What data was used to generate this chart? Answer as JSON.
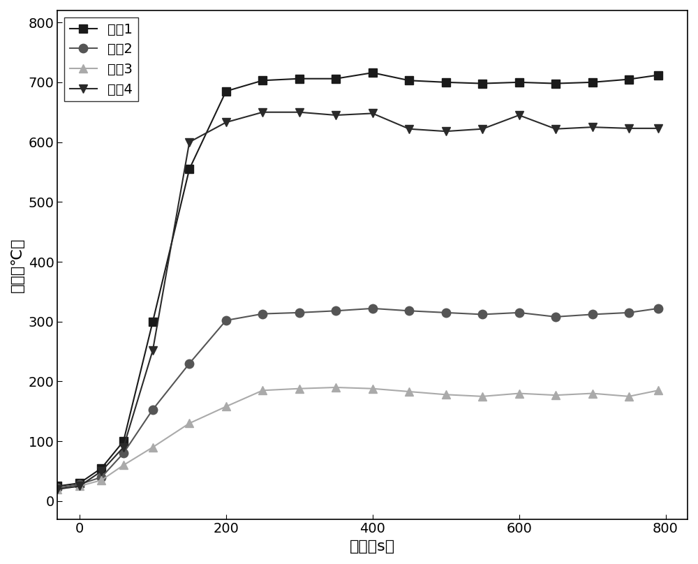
{
  "title": "",
  "xlabel": "时间（s）",
  "ylabel": "温度（℃）",
  "xlim": [
    -30,
    830
  ],
  "ylim": [
    -30,
    820
  ],
  "xticks": [
    0,
    200,
    400,
    600,
    800
  ],
  "yticks": [
    0,
    100,
    200,
    300,
    400,
    500,
    600,
    700,
    800
  ],
  "series": [
    {
      "label": "部位1",
      "color": "#1a1a1a",
      "marker": "s",
      "markersize": 9,
      "x": [
        -30,
        0,
        30,
        60,
        100,
        150,
        200,
        250,
        300,
        350,
        400,
        450,
        500,
        550,
        600,
        650,
        700,
        750,
        790
      ],
      "y": [
        25,
        30,
        55,
        100,
        300,
        555,
        685,
        703,
        706,
        706,
        716,
        703,
        700,
        698,
        700,
        698,
        700,
        705,
        712
      ]
    },
    {
      "label": "部位2",
      "color": "#555555",
      "marker": "o",
      "markersize": 9,
      "x": [
        -30,
        0,
        30,
        60,
        100,
        150,
        200,
        250,
        300,
        350,
        400,
        450,
        500,
        550,
        600,
        650,
        700,
        750,
        790
      ],
      "y": [
        22,
        28,
        40,
        80,
        153,
        230,
        302,
        313,
        315,
        318,
        322,
        318,
        315,
        312,
        315,
        308,
        312,
        315,
        322
      ]
    },
    {
      "label": "部位3",
      "color": "#aaaaaa",
      "marker": "^",
      "markersize": 9,
      "x": [
        -30,
        0,
        30,
        60,
        100,
        150,
        200,
        250,
        300,
        350,
        400,
        450,
        500,
        550,
        600,
        650,
        700,
        750,
        790
      ],
      "y": [
        20,
        25,
        35,
        60,
        90,
        130,
        158,
        185,
        188,
        190,
        188,
        183,
        178,
        175,
        180,
        177,
        180,
        175,
        185
      ]
    },
    {
      "label": "部位4",
      "color": "#2a2a2a",
      "marker": "v",
      "markersize": 9,
      "x": [
        -30,
        0,
        30,
        60,
        100,
        150,
        200,
        250,
        300,
        350,
        400,
        450,
        500,
        550,
        600,
        650,
        700,
        750,
        790
      ],
      "y": [
        20,
        25,
        50,
        90,
        252,
        600,
        633,
        650,
        650,
        645,
        648,
        622,
        618,
        622,
        645,
        622,
        625,
        623,
        623
      ]
    }
  ],
  "legend_fontsize": 14,
  "axis_fontsize": 16,
  "tick_fontsize": 14,
  "linewidth": 1.5,
  "background_color": "#ffffff",
  "spine_color": "#000000"
}
